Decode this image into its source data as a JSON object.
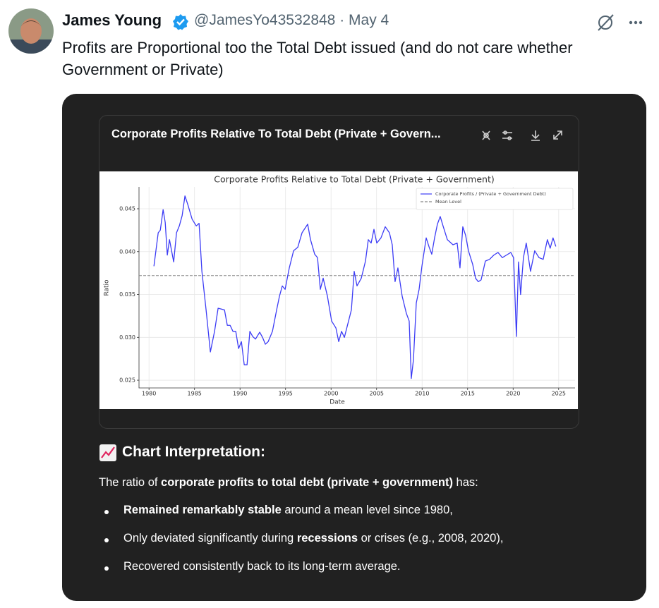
{
  "tweet": {
    "author": "James Young",
    "handle_date": "@JamesYo43532848 · May 4",
    "text": "Profits are Proportional too the Total Debt issued (and do not care whether Government or Private)"
  },
  "card": {
    "title": "Corporate Profits Relative To Total Debt (Private + Govern...",
    "heading": "Chart Interpretation:",
    "intro": [
      {
        "text": "The ratio of "
      },
      {
        "text": "corporate profits to total debt (private + government)",
        "bold": true
      },
      {
        "text": " has:"
      }
    ],
    "bullets": [
      [
        {
          "text": "Remained remarkably stable",
          "bold": true
        },
        {
          "text": " around a mean level since 1980,"
        }
      ],
      [
        {
          "text": "Only deviated significantly during "
        },
        {
          "text": "recessions",
          "bold": true
        },
        {
          "text": " or crises (e.g., 2008, 2020),"
        }
      ],
      [
        {
          "text": "Recovered consistently back to its long-term average."
        }
      ]
    ]
  },
  "chart_data": {
    "type": "line",
    "title": "Corporate Profits Relative to Total Debt (Private + Government)",
    "x_label": "Date",
    "y_label": "Ratio",
    "x": [
      1980.54,
      1981.01,
      1981.24,
      1981.55,
      1981.78,
      1982.01,
      1982.25,
      1982.71,
      1983.02,
      1983.33,
      1983.64,
      1983.95,
      1984.26,
      1984.73,
      1985.19,
      1985.5,
      1985.81,
      1986.27,
      1986.74,
      1987.2,
      1987.59,
      1988.29,
      1988.6,
      1988.91,
      1989.22,
      1989.53,
      1989.84,
      1990.15,
      1990.46,
      1990.77,
      1991.08,
      1991.39,
      1991.7,
      1992.16,
      1992.47,
      1992.78,
      1993.09,
      1993.56,
      1994.02,
      1994.33,
      1994.64,
      1994.95,
      1995.41,
      1995.88,
      1996.34,
      1996.81,
      1997.43,
      1997.74,
      1998.2,
      1998.51,
      1998.82,
      1999.13,
      1999.6,
      2000.06,
      2000.53,
      2000.84,
      2001.15,
      2001.46,
      2001.92,
      2002.23,
      2002.54,
      2002.85,
      2003.32,
      2003.78,
      2004.09,
      2004.4,
      2004.71,
      2005.02,
      2005.48,
      2005.95,
      2006.41,
      2006.72,
      2007.03,
      2007.34,
      2007.81,
      2008.27,
      2008.58,
      2008.81,
      2009.05,
      2009.36,
      2009.67,
      2009.98,
      2010.45,
      2010.75,
      2011.06,
      2011.37,
      2011.68,
      2011.99,
      2012.3,
      2012.77,
      2013.39,
      2013.85,
      2014.16,
      2014.47,
      2014.78,
      2015.09,
      2015.56,
      2015.87,
      2016.17,
      2016.48,
      2016.95,
      2017.41,
      2017.88,
      2018.34,
      2018.81,
      2019.27,
      2019.74,
      2020.05,
      2020.36,
      2020.59,
      2020.82,
      2021.13,
      2021.44,
      2021.91,
      2022.37,
      2022.84,
      2023.3,
      2023.76,
      2024.07,
      2024.38,
      2024.69
    ],
    "series": [
      {
        "name": "Corporate Profits / (Private + Government Debt)",
        "color": "#3d3df5",
        "values": [
          0.0383,
          0.0422,
          0.0425,
          0.0449,
          0.0434,
          0.0396,
          0.0414,
          0.0388,
          0.0422,
          0.043,
          0.0442,
          0.0465,
          0.0455,
          0.0438,
          0.043,
          0.0433,
          0.0377,
          0.0332,
          0.0283,
          0.0307,
          0.0334,
          0.0332,
          0.0314,
          0.0314,
          0.0307,
          0.0307,
          0.0287,
          0.0295,
          0.0268,
          0.0268,
          0.0307,
          0.0301,
          0.0298,
          0.0306,
          0.03,
          0.0292,
          0.0295,
          0.0307,
          0.0332,
          0.0348,
          0.036,
          0.0356,
          0.0381,
          0.0401,
          0.0405,
          0.0422,
          0.0432,
          0.0414,
          0.0397,
          0.0393,
          0.0356,
          0.0369,
          0.0348,
          0.0319,
          0.0311,
          0.0295,
          0.0307,
          0.03,
          0.0319,
          0.0332,
          0.0377,
          0.036,
          0.0369,
          0.0389,
          0.0414,
          0.041,
          0.0426,
          0.041,
          0.0416,
          0.0429,
          0.0422,
          0.0408,
          0.0365,
          0.0381,
          0.0348,
          0.0328,
          0.0319,
          0.0252,
          0.0274,
          0.034,
          0.0356,
          0.0383,
          0.0416,
          0.0406,
          0.0397,
          0.0416,
          0.0432,
          0.0441,
          0.043,
          0.0414,
          0.0408,
          0.041,
          0.0381,
          0.0429,
          0.0419,
          0.0401,
          0.0385,
          0.0369,
          0.0365,
          0.0367,
          0.0389,
          0.0391,
          0.0396,
          0.0399,
          0.0393,
          0.0396,
          0.0399,
          0.0393,
          0.0301,
          0.0388,
          0.035,
          0.0393,
          0.041,
          0.0377,
          0.0401,
          0.0393,
          0.0391,
          0.0414,
          0.0404,
          0.0416,
          0.0406
        ]
      }
    ],
    "reference_lines": [
      {
        "name": "Mean Level",
        "value": 0.0372,
        "color": "#888888"
      }
    ],
    "xlim": [
      1978.9,
      2026.8
    ],
    "ylim": [
      0.0241,
      0.04755
    ],
    "xticks": [
      1980,
      1985,
      1990,
      1995,
      2000,
      2005,
      2010,
      2015,
      2020,
      2025
    ],
    "yticks": [
      0.025,
      {
        "value": 0.03,
        "label": "0.030"
      },
      0.035,
      {
        "value": 0.04,
        "label": "0.040"
      },
      0.045
    ],
    "grid": true,
    "legend": "upper right"
  }
}
